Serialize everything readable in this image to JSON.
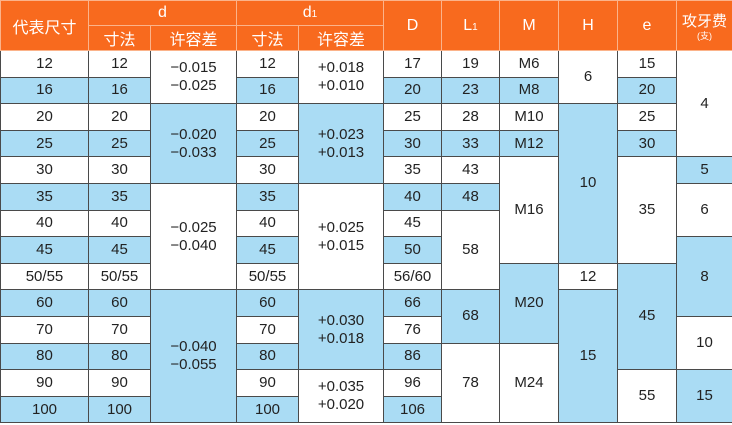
{
  "colors": {
    "header": "#f86a1e",
    "blue": "#aadcf4",
    "white": "#ffffff"
  },
  "header": {
    "size": "代表尺寸",
    "d": "d",
    "d1_main": "d",
    "d1_sub": "1",
    "dim": "寸法",
    "tol": "许容差",
    "D": "D",
    "L1_main": "L",
    "L1_sub": "1",
    "M": "M",
    "H": "H",
    "e": "e",
    "tap": "攻牙费",
    "tap_unit": "(支)"
  },
  "columns": [
    {
      "key": "size",
      "cells": [
        {
          "v": "12",
          "span": 1,
          "shade": "w"
        },
        {
          "v": "16",
          "span": 1,
          "shade": "b"
        },
        {
          "v": "20",
          "span": 1,
          "shade": "w"
        },
        {
          "v": "25",
          "span": 1,
          "shade": "b"
        },
        {
          "v": "30",
          "span": 1,
          "shade": "w"
        },
        {
          "v": "35",
          "span": 1,
          "shade": "b"
        },
        {
          "v": "40",
          "span": 1,
          "shade": "w"
        },
        {
          "v": "45",
          "span": 1,
          "shade": "b"
        },
        {
          "v": "50/55",
          "span": 1,
          "shade": "w"
        },
        {
          "v": "60",
          "span": 1,
          "shade": "b"
        },
        {
          "v": "70",
          "span": 1,
          "shade": "w"
        },
        {
          "v": "80",
          "span": 1,
          "shade": "b"
        },
        {
          "v": "90",
          "span": 1,
          "shade": "w"
        },
        {
          "v": "100",
          "span": 1,
          "shade": "b"
        }
      ]
    },
    {
      "key": "d_dim",
      "cells": [
        {
          "v": "12",
          "span": 1,
          "shade": "w"
        },
        {
          "v": "16",
          "span": 1,
          "shade": "b"
        },
        {
          "v": "20",
          "span": 1,
          "shade": "w"
        },
        {
          "v": "25",
          "span": 1,
          "shade": "b"
        },
        {
          "v": "30",
          "span": 1,
          "shade": "w"
        },
        {
          "v": "35",
          "span": 1,
          "shade": "b"
        },
        {
          "v": "40",
          "span": 1,
          "shade": "w"
        },
        {
          "v": "45",
          "span": 1,
          "shade": "b"
        },
        {
          "v": "50/55",
          "span": 1,
          "shade": "w"
        },
        {
          "v": "60",
          "span": 1,
          "shade": "b"
        },
        {
          "v": "70",
          "span": 1,
          "shade": "w"
        },
        {
          "v": "80",
          "span": 1,
          "shade": "b"
        },
        {
          "v": "90",
          "span": 1,
          "shade": "w"
        },
        {
          "v": "100",
          "span": 1,
          "shade": "b"
        }
      ]
    },
    {
      "key": "d_tol",
      "cells": [
        {
          "v": [
            "−0.015",
            "−0.025"
          ],
          "span": 2,
          "shade": "w"
        },
        {
          "v": [
            "−0.020",
            "−0.033"
          ],
          "span": 3,
          "shade": "b"
        },
        {
          "v": [
            "−0.025",
            "−0.040"
          ],
          "span": 4,
          "shade": "w"
        },
        {
          "v": [
            "−0.040",
            "−0.055"
          ],
          "span": 5,
          "shade": "b"
        }
      ]
    },
    {
      "key": "d1_dim",
      "cells": [
        {
          "v": "12",
          "span": 1,
          "shade": "w"
        },
        {
          "v": "16",
          "span": 1,
          "shade": "b"
        },
        {
          "v": "20",
          "span": 1,
          "shade": "w"
        },
        {
          "v": "25",
          "span": 1,
          "shade": "b"
        },
        {
          "v": "30",
          "span": 1,
          "shade": "w"
        },
        {
          "v": "35",
          "span": 1,
          "shade": "b"
        },
        {
          "v": "40",
          "span": 1,
          "shade": "w"
        },
        {
          "v": "45",
          "span": 1,
          "shade": "b"
        },
        {
          "v": "50/55",
          "span": 1,
          "shade": "w"
        },
        {
          "v": "60",
          "span": 1,
          "shade": "b"
        },
        {
          "v": "70",
          "span": 1,
          "shade": "w"
        },
        {
          "v": "80",
          "span": 1,
          "shade": "b"
        },
        {
          "v": "90",
          "span": 1,
          "shade": "w"
        },
        {
          "v": "100",
          "span": 1,
          "shade": "b"
        }
      ]
    },
    {
      "key": "d1_tol",
      "cells": [
        {
          "v": [
            "+0.018",
            "+0.010"
          ],
          "span": 2,
          "shade": "w"
        },
        {
          "v": [
            "+0.023",
            "+0.013"
          ],
          "span": 3,
          "shade": "b"
        },
        {
          "v": [
            "+0.025",
            "+0.015"
          ],
          "span": 4,
          "shade": "w"
        },
        {
          "v": [
            "+0.030",
            "+0.018"
          ],
          "span": 3,
          "shade": "b"
        },
        {
          "v": [
            "+0.035",
            "+0.020"
          ],
          "span": 2,
          "shade": "w"
        }
      ]
    },
    {
      "key": "D",
      "cells": [
        {
          "v": "17",
          "span": 1,
          "shade": "w"
        },
        {
          "v": "20",
          "span": 1,
          "shade": "b"
        },
        {
          "v": "25",
          "span": 1,
          "shade": "w"
        },
        {
          "v": "30",
          "span": 1,
          "shade": "b"
        },
        {
          "v": "35",
          "span": 1,
          "shade": "w"
        },
        {
          "v": "40",
          "span": 1,
          "shade": "b"
        },
        {
          "v": "45",
          "span": 1,
          "shade": "w"
        },
        {
          "v": "50",
          "span": 1,
          "shade": "b"
        },
        {
          "v": "56/60",
          "span": 1,
          "shade": "w"
        },
        {
          "v": "66",
          "span": 1,
          "shade": "b"
        },
        {
          "v": "76",
          "span": 1,
          "shade": "w"
        },
        {
          "v": "86",
          "span": 1,
          "shade": "b"
        },
        {
          "v": "96",
          "span": 1,
          "shade": "w"
        },
        {
          "v": "106",
          "span": 1,
          "shade": "b"
        }
      ]
    },
    {
      "key": "L1",
      "cells": [
        {
          "v": "19",
          "span": 1,
          "shade": "w"
        },
        {
          "v": "23",
          "span": 1,
          "shade": "b"
        },
        {
          "v": "28",
          "span": 1,
          "shade": "w"
        },
        {
          "v": "33",
          "span": 1,
          "shade": "b"
        },
        {
          "v": "43",
          "span": 1,
          "shade": "w"
        },
        {
          "v": "48",
          "span": 1,
          "shade": "b"
        },
        {
          "v": "58",
          "span": 3,
          "shade": "w"
        },
        {
          "v": "68",
          "span": 2,
          "shade": "b"
        },
        {
          "v": "78",
          "span": 3,
          "shade": "w"
        }
      ]
    },
    {
      "key": "M",
      "cells": [
        {
          "v": "M6",
          "span": 1,
          "shade": "w"
        },
        {
          "v": "M8",
          "span": 1,
          "shade": "b"
        },
        {
          "v": "M10",
          "span": 1,
          "shade": "w"
        },
        {
          "v": "M12",
          "span": 1,
          "shade": "b"
        },
        {
          "v": "M16",
          "span": 4,
          "shade": "w"
        },
        {
          "v": "M20",
          "span": 3,
          "shade": "b"
        },
        {
          "v": "M24",
          "span": 3,
          "shade": "w"
        }
      ]
    },
    {
      "key": "H",
      "cells": [
        {
          "v": "6",
          "span": 2,
          "shade": "w"
        },
        {
          "v": "10",
          "span": 6,
          "shade": "b"
        },
        {
          "v": "12",
          "span": 1,
          "shade": "w"
        },
        {
          "v": "15",
          "span": 5,
          "shade": "b"
        }
      ]
    },
    {
      "key": "e",
      "cells": [
        {
          "v": "15",
          "span": 1,
          "shade": "w"
        },
        {
          "v": "20",
          "span": 1,
          "shade": "b"
        },
        {
          "v": "25",
          "span": 1,
          "shade": "w"
        },
        {
          "v": "30",
          "span": 1,
          "shade": "b"
        },
        {
          "v": "35",
          "span": 4,
          "shade": "w"
        },
        {
          "v": "45",
          "span": 4,
          "shade": "b"
        },
        {
          "v": "55",
          "span": 2,
          "shade": "w"
        }
      ]
    },
    {
      "key": "tap",
      "cells": [
        {
          "v": "4",
          "span": 4,
          "shade": "w"
        },
        {
          "v": "5",
          "span": 1,
          "shade": "b"
        },
        {
          "v": "6",
          "span": 2,
          "shade": "w"
        },
        {
          "v": "8",
          "span": 3,
          "shade": "b"
        },
        {
          "v": "10",
          "span": 2,
          "shade": "w"
        },
        {
          "v": "15",
          "span": 2,
          "shade": "b"
        }
      ]
    }
  ]
}
